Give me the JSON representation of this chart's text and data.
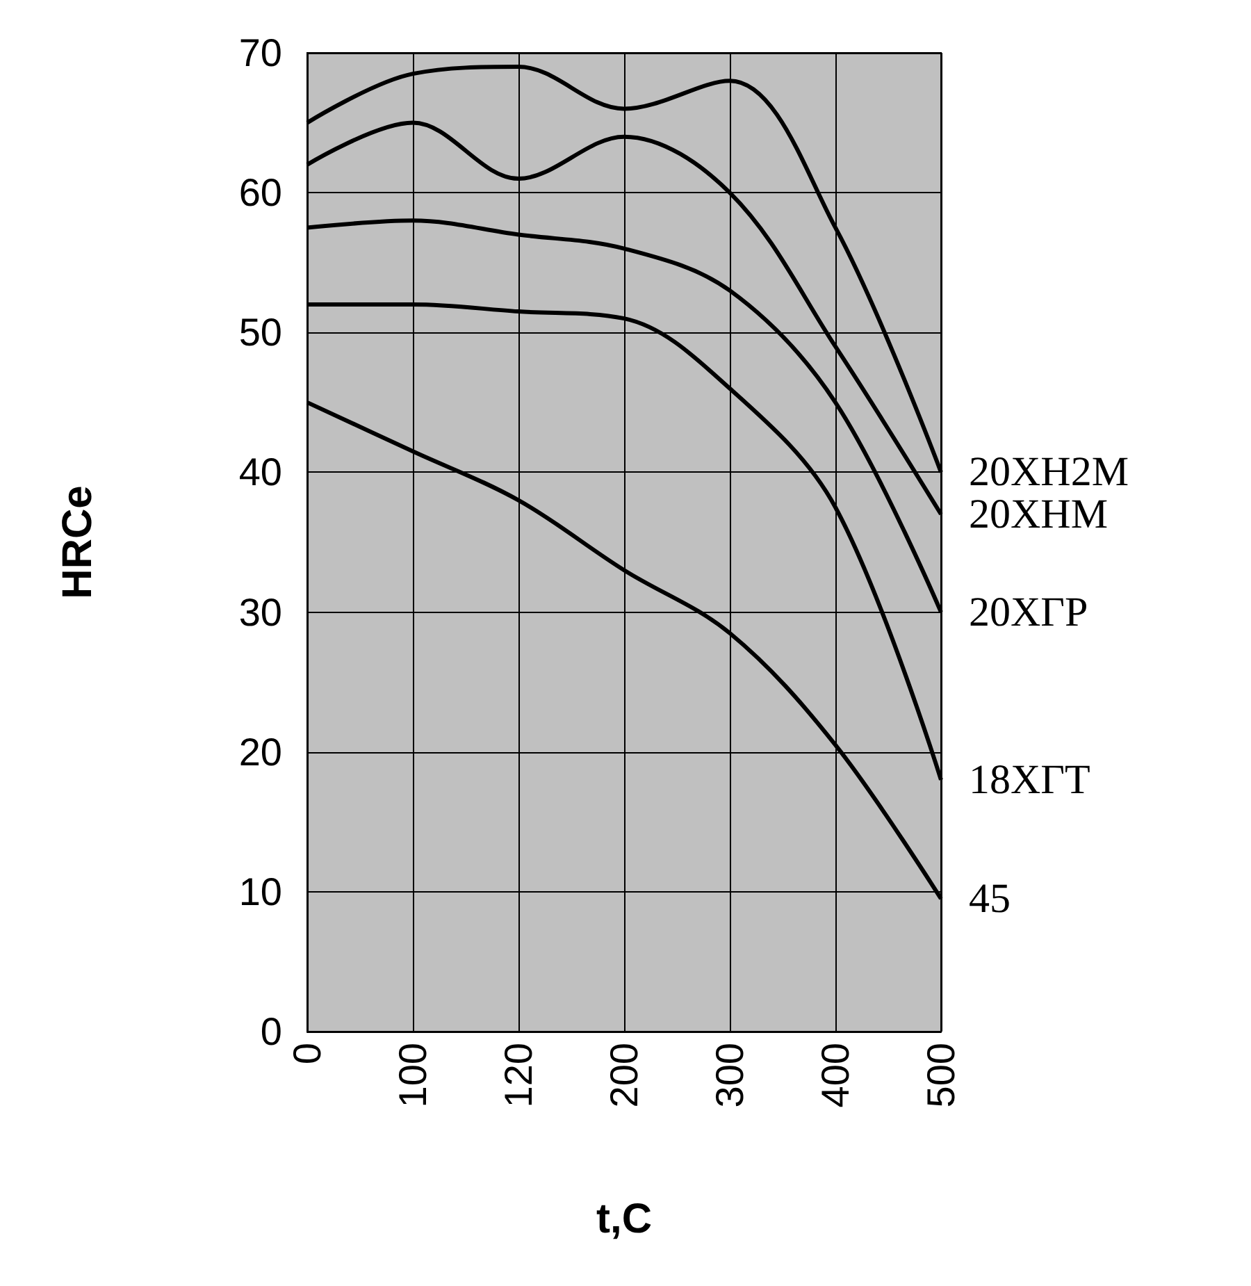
{
  "chart_data": {
    "type": "line",
    "xlabel": "t,C",
    "ylabel": "HRCe",
    "categories": [
      "0",
      "100",
      "120",
      "200",
      "300",
      "400",
      "500"
    ],
    "ylim": [
      0,
      70
    ],
    "yticks": [
      0,
      10,
      20,
      30,
      40,
      50,
      60,
      70
    ],
    "grid": true,
    "legend": false,
    "marker": "none",
    "line_style": "solid",
    "series": [
      {
        "name": "20ХН2М",
        "color": "#000000",
        "values": [
          65,
          68.5,
          69,
          66,
          68,
          57.5,
          40
        ]
      },
      {
        "name": "20ХНМ",
        "color": "#000000",
        "values": [
          62,
          65,
          61,
          64,
          60,
          49,
          37
        ]
      },
      {
        "name": "20ХГР",
        "color": "#000000",
        "values": [
          57.5,
          58,
          57,
          56,
          53,
          45,
          30
        ]
      },
      {
        "name": "18ХГТ",
        "color": "#000000",
        "values": [
          52,
          52,
          51.5,
          51,
          46,
          37.5,
          18
        ]
      },
      {
        "name": "45",
        "color": "#000000",
        "values": [
          45,
          41.5,
          38,
          33,
          28.5,
          20.5,
          9.5
        ]
      }
    ]
  }
}
